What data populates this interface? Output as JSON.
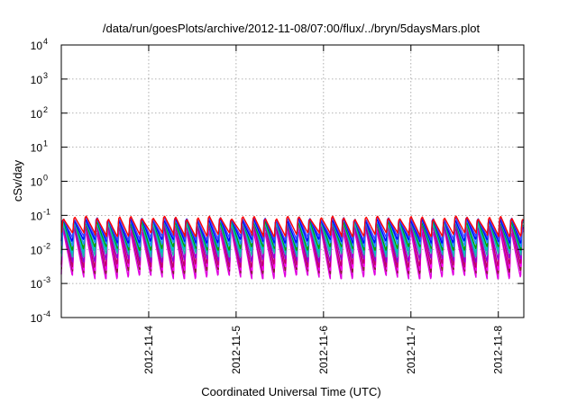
{
  "chart_data": {
    "type": "line",
    "title": "/data/run/goesPlots/archive/2012-11-08/07:00/flux/../bryn/5daysMars.plot",
    "xlabel": "Coordinated Universal Time (UTC)",
    "ylabel": "cSv/day",
    "x_range": [
      "2012-11-03 00:00",
      "2012-11-08 07:00"
    ],
    "x_ticks": [
      "2012-11-4",
      "2012-11-5",
      "2012-11-6",
      "2012-11-7",
      "2012-11-8"
    ],
    "y_scale": "log",
    "ylim": [
      0.0001,
      10000
    ],
    "y_ticks": [
      {
        "base": "10",
        "exp": "-4"
      },
      {
        "base": "10",
        "exp": "-3"
      },
      {
        "base": "10",
        "exp": "-2"
      },
      {
        "base": "10",
        "exp": "-1"
      },
      {
        "base": "10",
        "exp": "0"
      },
      {
        "base": "10",
        "exp": "1"
      },
      {
        "base": "10",
        "exp": "2"
      },
      {
        "base": "10",
        "exp": "3"
      },
      {
        "base": "10",
        "exp": "4"
      }
    ],
    "grid": true,
    "pattern": {
      "type": "sawtooth",
      "cycles_per_day": 7.8,
      "description_values_only": true
    },
    "series": [
      {
        "color": "#e000e0",
        "peak": 0.045,
        "trough": 0.0016
      },
      {
        "color": "#8b1a3a",
        "peak": 0.055,
        "trough": 0.0023
      },
      {
        "color": "#ff00ff",
        "peak": 0.05,
        "trough": 0.0028
      },
      {
        "color": "#c0006a",
        "peak": 0.06,
        "trough": 0.0035
      },
      {
        "color": "#9400d3",
        "peak": 0.065,
        "trough": 0.005
      },
      {
        "color": "#20b2aa",
        "peak": 0.07,
        "trough": 0.007
      },
      {
        "color": "#00bfbf",
        "peak": 0.075,
        "trough": 0.009
      },
      {
        "color": "#00a000",
        "peak": 0.078,
        "trough": 0.011
      },
      {
        "color": "#1e90ff",
        "peak": 0.082,
        "trough": 0.014
      },
      {
        "color": "#0000ff",
        "peak": 0.085,
        "trough": 0.018
      },
      {
        "color": "#4040ff",
        "peak": 0.09,
        "trough": 0.022
      },
      {
        "color": "#ff0000",
        "peak": 0.095,
        "trough": 0.028
      }
    ]
  }
}
